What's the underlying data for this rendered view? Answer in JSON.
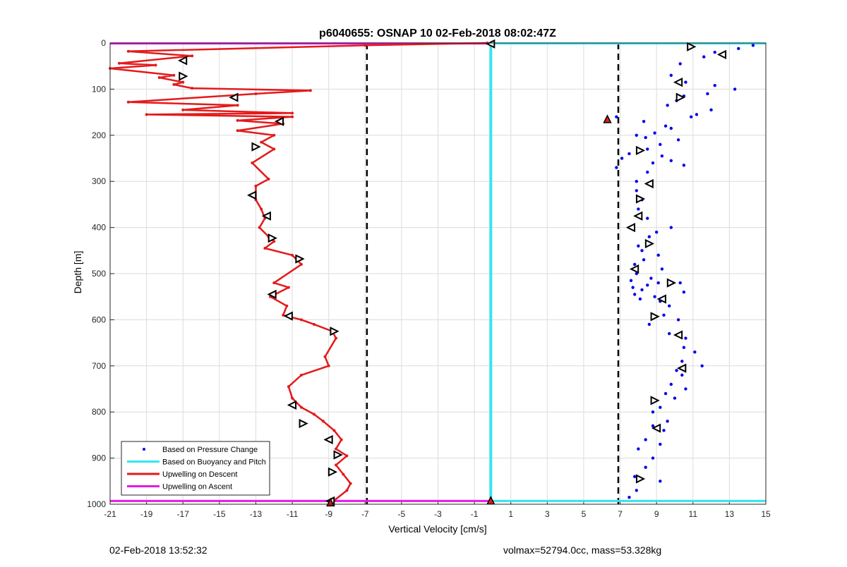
{
  "chart_data": {
    "type": "scatter",
    "title": "p6040655: OSNAP 10 02-Feb-2018 08:02:47Z",
    "xlabel": "Vertical Velocity [cm/s]",
    "ylabel": "Depth [m]",
    "xlim": [
      -21,
      15
    ],
    "ylim": [
      0,
      1000
    ],
    "y_reversed": true,
    "grid": true,
    "x_ticks": [
      -21,
      -19,
      -17,
      -15,
      -13,
      -11,
      -9,
      -7,
      -5,
      -3,
      -1,
      1,
      3,
      5,
      7,
      9,
      11,
      13,
      15
    ],
    "y_ticks": [
      0,
      100,
      200,
      300,
      400,
      500,
      600,
      700,
      800,
      900,
      1000
    ],
    "legend_position": "bottom-left",
    "legend": [
      "Based on Pressure Change",
      "Based on Buoyancy and Pitch",
      "Upwelling on Descent",
      "Upwelling on Ascent"
    ],
    "colors": {
      "pressure_change": "#0000ee",
      "buoyancy_pitch": "#33e6ee",
      "upwelling_descent": "#e31a1c",
      "upwelling_ascent": "#e619e6",
      "threshold": "#000000"
    },
    "thresholds_x": [
      -6.9,
      6.9
    ],
    "series": [
      {
        "name": "Upwelling on Descent",
        "type": "line",
        "x": [
          -0.3,
          -7,
          -20,
          -16.5,
          -20.5,
          -18.5,
          -21,
          -17.5,
          -18.3,
          -17,
          -17.5,
          -16.5,
          -10,
          -13,
          -20,
          -14,
          -17,
          -11,
          -19,
          -11,
          -14,
          -11.5,
          -14,
          -12,
          -12.7,
          -12,
          -13.2,
          -12.3,
          -13,
          -13,
          -12.7,
          -12.5,
          -12.8,
          -12.3,
          -12,
          -12.5,
          -11,
          -10.5,
          -12,
          -11.2,
          -12.2,
          -11.3,
          -11.5,
          -10.5,
          -9.8,
          -8.8,
          -8.6,
          -9.2,
          -9,
          -10.5,
          -11.2,
          -11,
          -10.5,
          -9.8,
          -9.3,
          -8.7,
          -8.3,
          -8.6,
          -8,
          -8.6,
          -8.2,
          -7.8,
          -8,
          -8.7
        ],
        "y": [
          0,
          5,
          18,
          28,
          44,
          48,
          55,
          70,
          75,
          85,
          90,
          98,
          103,
          110,
          128,
          135,
          145,
          152,
          155,
          160,
          168,
          175,
          190,
          200,
          215,
          230,
          260,
          295,
          310,
          340,
          360,
          380,
          400,
          420,
          430,
          445,
          460,
          480,
          520,
          530,
          550,
          570,
          590,
          600,
          610,
          625,
          640,
          680,
          700,
          720,
          745,
          770,
          790,
          805,
          820,
          840,
          860,
          880,
          895,
          915,
          935,
          955,
          970,
          992
        ]
      },
      {
        "name": "Based on Pressure Change",
        "type": "scatter",
        "x": [
          14.3,
          13.5,
          12.2,
          11.6,
          10.3,
          9.8,
          10.6,
          12.2,
          13.3,
          11.8,
          10.5,
          10.1,
          9.6,
          12,
          11.2,
          10.9,
          8.3,
          9.5,
          9.8,
          8.9,
          7.9,
          8.4,
          10.2,
          6.8,
          9.2,
          8.5,
          7.5,
          9.3,
          7.1,
          9.8,
          8.8,
          10.5,
          6.8,
          8.5,
          7.9,
          7.9,
          8.2,
          8,
          8.5,
          9.8,
          9,
          8.6,
          8,
          8.2,
          9.1,
          8.3,
          7.8,
          9.3,
          7.9,
          8.7,
          7.6,
          9.1,
          8.5,
          7.7,
          8.2,
          7.8,
          8.9,
          8.1,
          10.3,
          10.5,
          9.2,
          9.7,
          9.4,
          10.2,
          8.6,
          9.7,
          10.6,
          10.5,
          11.1,
          10.4,
          11.5,
          10.1,
          10.4,
          9.8,
          10.6,
          9.5,
          10,
          9.2,
          8.8,
          9.6,
          8.8,
          9.4,
          8.4,
          9.2,
          8,
          8.8,
          8.4,
          7.8,
          9.2,
          7.9,
          7.5
        ],
        "y": [
          5,
          12,
          20,
          30,
          45,
          70,
          85,
          92,
          100,
          110,
          115,
          125,
          135,
          145,
          155,
          160,
          170,
          180,
          185,
          195,
          200,
          205,
          210,
          160,
          220,
          230,
          240,
          245,
          250,
          255,
          260,
          265,
          270,
          280,
          300,
          320,
          340,
          360,
          380,
          400,
          410,
          420,
          440,
          450,
          460,
          470,
          480,
          490,
          500,
          510,
          515,
          520,
          525,
          530,
          535,
          545,
          550,
          555,
          520,
          540,
          560,
          570,
          590,
          600,
          610,
          630,
          640,
          660,
          670,
          690,
          700,
          710,
          720,
          740,
          750,
          760,
          770,
          790,
          800,
          820,
          830,
          840,
          860,
          870,
          880,
          900,
          920,
          940,
          950,
          970,
          985
        ]
      },
      {
        "name": "Based on Buoyancy and Pitch",
        "type": "line",
        "x": [
          -0.1,
          -0.1
        ],
        "y": [
          2,
          992
        ]
      }
    ],
    "markers_left": [
      {
        "x": -0.1,
        "y": 2,
        "dir": "left"
      },
      {
        "x": -17,
        "y": 38,
        "dir": "left"
      },
      {
        "x": -17,
        "y": 72,
        "dir": "right"
      },
      {
        "x": -14.2,
        "y": 118,
        "dir": "left"
      },
      {
        "x": -11.7,
        "y": 170,
        "dir": "left"
      },
      {
        "x": -13,
        "y": 225,
        "dir": "right"
      },
      {
        "x": -13.2,
        "y": 330,
        "dir": "left"
      },
      {
        "x": -12.4,
        "y": 375,
        "dir": "left"
      },
      {
        "x": -12.1,
        "y": 423,
        "dir": "right"
      },
      {
        "x": -10.6,
        "y": 468,
        "dir": "right"
      },
      {
        "x": -12.1,
        "y": 545,
        "dir": "left"
      },
      {
        "x": -11.2,
        "y": 592,
        "dir": "left"
      },
      {
        "x": -8.7,
        "y": 625,
        "dir": "right"
      },
      {
        "x": -11,
        "y": 785,
        "dir": "left"
      },
      {
        "x": -10.4,
        "y": 825,
        "dir": "right"
      },
      {
        "x": -9,
        "y": 860,
        "dir": "left"
      },
      {
        "x": -8.5,
        "y": 893,
        "dir": "right"
      },
      {
        "x": -8.8,
        "y": 930,
        "dir": "right"
      },
      {
        "x": -8.9,
        "y": 993,
        "dir": "left"
      }
    ],
    "markers_right": [
      {
        "x": 10.9,
        "y": 8,
        "dir": "right"
      },
      {
        "x": 12.6,
        "y": 25,
        "dir": "left"
      },
      {
        "x": 10.2,
        "y": 85,
        "dir": "left"
      },
      {
        "x": 10.3,
        "y": 118,
        "dir": "right"
      },
      {
        "x": 8.1,
        "y": 233,
        "dir": "right"
      },
      {
        "x": 8.6,
        "y": 305,
        "dir": "left"
      },
      {
        "x": 8.1,
        "y": 338,
        "dir": "right"
      },
      {
        "x": 8,
        "y": 375,
        "dir": "left"
      },
      {
        "x": 7.6,
        "y": 400,
        "dir": "left"
      },
      {
        "x": 8.6,
        "y": 435,
        "dir": "right"
      },
      {
        "x": 7.8,
        "y": 490,
        "dir": "left"
      },
      {
        "x": 9.8,
        "y": 520,
        "dir": "right"
      },
      {
        "x": 9.3,
        "y": 555,
        "dir": "left"
      },
      {
        "x": 8.9,
        "y": 593,
        "dir": "right"
      },
      {
        "x": 10.2,
        "y": 633,
        "dir": "left"
      },
      {
        "x": 10.4,
        "y": 705,
        "dir": "left"
      },
      {
        "x": 8.9,
        "y": 775,
        "dir": "right"
      },
      {
        "x": 9,
        "y": 835,
        "dir": "left"
      },
      {
        "x": 8.1,
        "y": 945,
        "dir": "right"
      }
    ],
    "red_triangles": [
      {
        "x": 6.3,
        "y": 165
      },
      {
        "x": -0.1,
        "y": 992
      },
      {
        "x": -8.9,
        "y": 996
      }
    ]
  },
  "footer": {
    "left": "02-Feb-2018 13:52:32",
    "right": "volmax=52794.0cc, mass=53.328kg"
  }
}
